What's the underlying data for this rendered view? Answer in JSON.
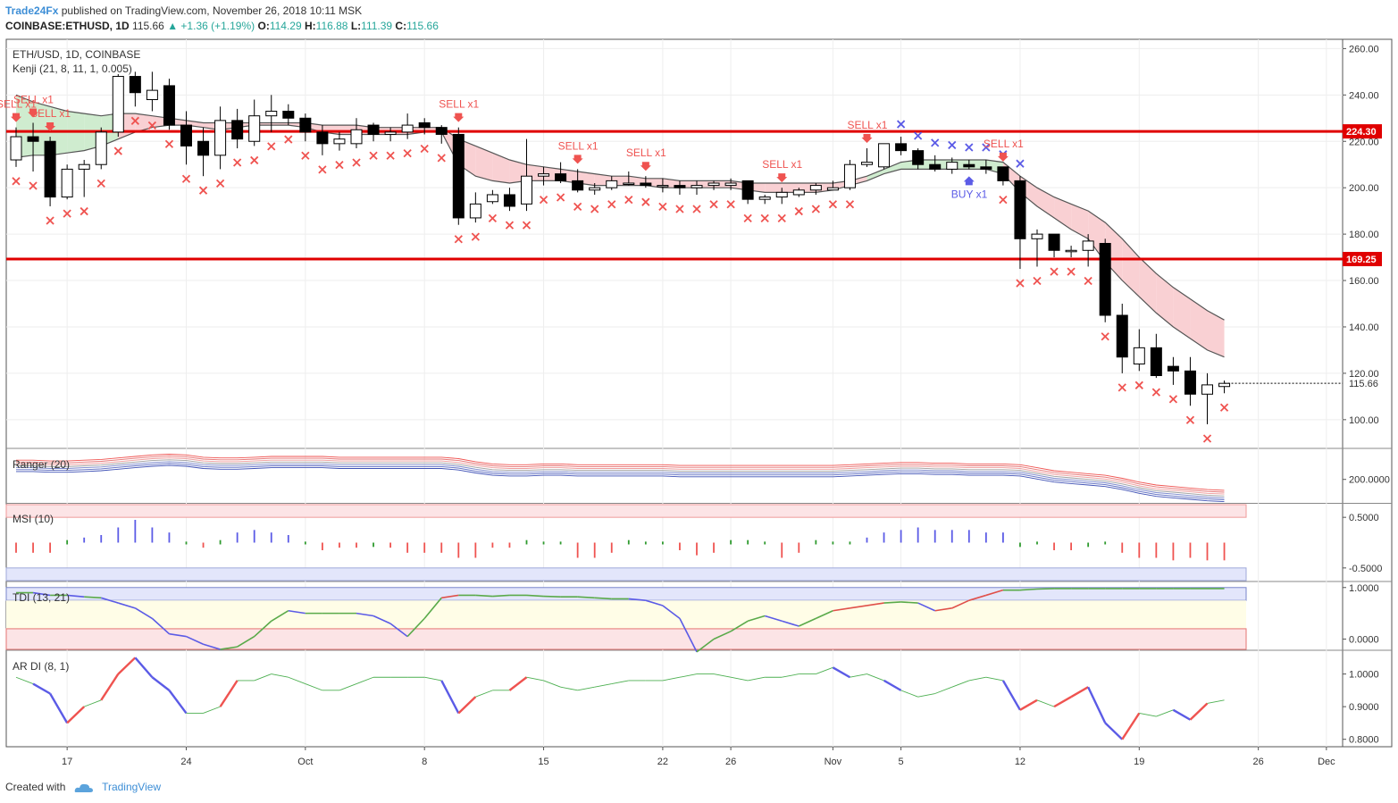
{
  "header": {
    "author": "Trade24Fx",
    "published": "published on TradingView.com, November 26, 2018 10:11 MSK",
    "symbol": "COINBASE:ETHUSD, 1D",
    "last": "115.66",
    "change": "+1.36 (+1.19%)",
    "o_label": "O:",
    "o": "114.29",
    "h_label": "H:",
    "h": "116.88",
    "l_label": "L:",
    "l": "111.39",
    "c_label": "C:",
    "c": "115.66"
  },
  "footer": {
    "created": "Created with",
    "brand": "TradingView"
  },
  "colors": {
    "up": "#ffffff",
    "down": "#000000",
    "sell": "#ef5350",
    "buy": "#5b5be6",
    "resistance": "#e00000",
    "cloud_red": "#f9d0d3",
    "cloud_green": "#cfeccf"
  },
  "chart_data": [
    {
      "type": "candlestick",
      "panel": "price",
      "legend": [
        "ETH/USD, 1D, COINBASE",
        "Kenji (21, 8, 11, 1, 0.005)"
      ],
      "y_range": [
        88,
        264
      ],
      "y_ticks": [
        "260.00",
        "240.00",
        "220.00",
        "200.00",
        "180.00",
        "160.00",
        "140.00",
        "120.00",
        "100.00"
      ],
      "y_tick_values": [
        260,
        240,
        220,
        200,
        180,
        160,
        140,
        120,
        100
      ],
      "x_labels": [
        "17",
        "24",
        "Oct",
        "8",
        "15",
        "22",
        "26",
        "Nov",
        "5",
        "12",
        "19",
        "26",
        "Dec"
      ],
      "x_label_index": [
        3,
        10,
        17,
        24,
        31,
        38,
        42,
        48,
        52,
        59,
        66,
        73,
        77
      ],
      "first_date": "2018-09-14",
      "ohlc": [
        [
          212,
          226,
          209,
          222
        ],
        [
          222,
          228,
          207,
          220
        ],
        [
          220,
          222,
          192,
          196
        ],
        [
          196,
          210,
          195,
          208
        ],
        [
          208,
          212,
          196,
          210
        ],
        [
          210,
          226,
          208,
          224
        ],
        [
          224,
          249,
          222,
          248
        ],
        [
          248,
          250,
          235,
          241
        ],
        [
          238,
          250,
          233,
          242
        ],
        [
          244,
          247,
          225,
          227
        ],
        [
          227,
          233,
          210,
          218
        ],
        [
          220,
          226,
          205,
          214
        ],
        [
          214,
          235,
          208,
          229
        ],
        [
          229,
          234,
          217,
          221
        ],
        [
          220,
          238,
          218,
          231
        ],
        [
          231,
          240,
          224,
          233
        ],
        [
          233,
          236,
          227,
          230
        ],
        [
          230,
          232,
          220,
          224
        ],
        [
          224,
          227,
          214,
          219
        ],
        [
          219,
          224,
          216,
          221
        ],
        [
          219,
          230,
          217,
          225
        ],
        [
          227,
          228,
          220,
          223
        ],
        [
          223,
          226,
          220,
          224
        ],
        [
          224,
          232,
          221,
          227
        ],
        [
          228,
          230,
          223,
          226
        ],
        [
          226,
          227,
          219,
          223
        ],
        [
          223,
          226,
          184,
          187
        ],
        [
          187,
          198,
          185,
          193
        ],
        [
          194,
          199,
          193,
          197
        ],
        [
          197,
          200,
          190,
          192
        ],
        [
          193,
          221,
          190,
          205
        ],
        [
          205,
          209,
          201,
          206
        ],
        [
          206,
          211,
          202,
          203
        ],
        [
          203,
          208,
          198,
          199
        ],
        [
          199,
          202,
          197,
          200
        ],
        [
          200,
          205,
          199,
          203
        ],
        [
          202,
          207,
          201,
          202
        ],
        [
          202,
          205,
          200,
          201
        ],
        [
          201,
          204,
          198,
          201
        ],
        [
          201,
          203,
          197,
          200
        ],
        [
          200,
          203,
          197,
          201
        ],
        [
          201,
          203,
          199,
          202
        ],
        [
          201,
          204,
          199,
          202
        ],
        [
          203,
          203,
          193,
          195
        ],
        [
          195,
          197,
          193,
          196
        ],
        [
          196,
          200,
          193,
          198
        ],
        [
          197,
          200,
          196,
          199
        ],
        [
          199,
          202,
          197,
          201
        ],
        [
          199,
          203,
          199,
          200
        ],
        [
          200,
          212,
          199,
          210
        ],
        [
          210,
          217,
          209,
          211
        ],
        [
          209,
          219,
          208,
          219
        ],
        [
          219,
          222,
          214,
          216
        ],
        [
          216,
          217,
          208,
          210
        ],
        [
          210,
          214,
          207,
          208
        ],
        [
          208,
          213,
          206,
          211
        ],
        [
          210,
          212,
          208,
          209
        ],
        [
          209,
          212,
          206,
          208
        ],
        [
          209,
          209,
          201,
          203
        ],
        [
          203,
          205,
          165,
          178
        ],
        [
          178,
          182,
          166,
          180
        ],
        [
          180,
          180,
          170,
          173
        ],
        [
          173,
          175,
          170,
          173
        ],
        [
          173,
          180,
          166,
          177
        ],
        [
          176,
          178,
          142,
          145
        ],
        [
          145,
          150,
          120,
          127
        ],
        [
          124,
          139,
          121,
          131
        ],
        [
          131,
          137,
          118,
          119
        ],
        [
          123,
          127,
          115,
          121
        ],
        [
          121,
          127,
          106,
          111
        ],
        [
          111,
          120,
          98,
          115
        ],
        [
          114.29,
          116.88,
          111.39,
          115.66
        ]
      ],
      "kenji_upper": [
        240,
        237,
        235,
        233,
        232,
        231,
        232,
        232,
        231,
        230,
        229,
        228,
        228,
        228,
        228,
        228,
        228,
        228,
        227,
        227,
        227,
        226,
        226,
        226,
        226,
        226,
        221,
        218,
        215,
        212,
        210,
        209,
        208,
        207,
        206,
        205,
        205,
        204,
        204,
        203,
        203,
        203,
        203,
        202,
        202,
        202,
        202,
        202,
        202,
        203,
        205,
        208,
        211,
        212,
        212,
        212,
        212,
        212,
        211,
        205,
        200,
        196,
        193,
        190,
        185,
        178,
        170,
        163,
        157,
        152,
        147,
        143
      ],
      "kenji_lower": [
        213,
        214,
        214,
        215,
        216,
        218,
        221,
        224,
        226,
        227,
        227,
        226,
        225,
        226,
        227,
        227,
        227,
        226,
        224,
        223,
        223,
        223,
        223,
        223,
        224,
        224,
        210,
        205,
        203,
        202,
        203,
        203,
        203,
        202,
        201,
        201,
        201,
        201,
        200,
        200,
        200,
        200,
        200,
        199,
        198,
        198,
        198,
        198,
        199,
        201,
        203,
        206,
        208,
        208,
        208,
        208,
        208,
        208,
        206,
        198,
        192,
        187,
        182,
        178,
        168,
        160,
        153,
        146,
        140,
        135,
        130,
        127
      ],
      "levels": [
        {
          "value": 224.3,
          "label": "224.30"
        },
        {
          "value": 169.25,
          "label": "169.25"
        }
      ],
      "last_price": {
        "value": 115.66,
        "label": "115.66"
      },
      "sell_marks": [
        0,
        1,
        2,
        26,
        33,
        37,
        45,
        50,
        58
      ],
      "sell_text": "SELL x1",
      "buy_marks": [
        56
      ],
      "buy_text": "BUY x1",
      "sell_x_index": [
        0,
        1,
        2,
        3,
        4,
        5,
        6,
        7,
        8,
        9,
        10,
        11,
        12,
        13,
        14,
        15,
        16,
        17,
        18,
        19,
        20,
        21,
        22,
        23,
        24,
        25,
        26,
        27,
        28,
        29,
        30,
        31,
        32,
        33,
        34,
        35,
        36,
        37,
        38,
        39,
        40,
        41,
        42,
        43,
        44,
        45,
        46,
        47,
        48,
        49,
        58,
        59,
        60,
        61,
        62,
        63,
        64,
        65,
        66,
        67,
        68,
        69,
        70,
        71
      ],
      "buy_x_index": [
        52,
        53,
        54,
        55,
        56,
        57,
        58,
        59
      ]
    },
    {
      "type": "line",
      "panel": "Ranger",
      "legend": "Ranger (20)",
      "y_range": [
        170,
        240
      ],
      "y_ticks": [
        "200.0000"
      ],
      "y_tick_values": [
        200
      ],
      "base": [
        218,
        218,
        217,
        217,
        218,
        219,
        221,
        223,
        225,
        226,
        225,
        222,
        221,
        221,
        222,
        223,
        223,
        223,
        223,
        222,
        222,
        222,
        222,
        222,
        222,
        222,
        220,
        216,
        213,
        212,
        212,
        213,
        213,
        212,
        212,
        212,
        212,
        212,
        212,
        211,
        211,
        211,
        211,
        211,
        211,
        211,
        211,
        211,
        211,
        212,
        213,
        214,
        215,
        215,
        214,
        214,
        213,
        213,
        213,
        212,
        208,
        204,
        202,
        200,
        198,
        194,
        189,
        185,
        183,
        181,
        179,
        178
      ]
    },
    {
      "type": "bar",
      "panel": "MSI",
      "legend": "MSI (10)",
      "y_range": [
        -0.75,
        0.75
      ],
      "y_ticks": [
        "0.5000",
        "-0.5000"
      ],
      "y_tick_values": [
        0.5,
        -0.5
      ],
      "values": [
        -0.2,
        -0.2,
        -0.2,
        0.05,
        0.1,
        0.15,
        0.3,
        0.45,
        0.3,
        0.2,
        0,
        -0.1,
        0.05,
        0.2,
        0.25,
        0.2,
        0.15,
        0,
        -0.15,
        -0.1,
        -0.1,
        -0.05,
        -0.1,
        -0.2,
        -0.2,
        -0.2,
        -0.3,
        -0.3,
        -0.1,
        -0.1,
        0.05,
        0,
        0,
        -0.3,
        -0.3,
        -0.2,
        0.05,
        0,
        0,
        -0.15,
        -0.25,
        -0.2,
        0.05,
        0.05,
        0,
        -0.3,
        -0.2,
        0.05,
        0,
        0,
        0.1,
        0.2,
        0.25,
        0.3,
        0.25,
        0.25,
        0.25,
        0.2,
        0.2,
        -0.05,
        0,
        -0.15,
        -0.15,
        -0.05,
        0,
        -0.2,
        -0.3,
        -0.3,
        -0.35,
        -0.3,
        -0.35,
        -0.35
      ],
      "pos_color": "#5b5be6",
      "neg_color": "#ef5350",
      "small_color": "#2e9a2e"
    },
    {
      "type": "line",
      "panel": "TDI",
      "legend": "TDI (13, 21)",
      "y_range": [
        -0.2,
        1.1
      ],
      "y_ticks": [
        "1.0000",
        "0.0000"
      ],
      "y_tick_values": [
        1,
        0
      ],
      "values": [
        0.9,
        0.9,
        0.85,
        0.85,
        0.82,
        0.8,
        0.7,
        0.6,
        0.4,
        0.1,
        0.05,
        -0.1,
        -0.2,
        -0.15,
        0.05,
        0.35,
        0.55,
        0.5,
        0.5,
        0.5,
        0.5,
        0.45,
        0.3,
        0.05,
        0.4,
        0.8,
        0.85,
        0.85,
        0.83,
        0.85,
        0.85,
        0.83,
        0.82,
        0.82,
        0.8,
        0.78,
        0.78,
        0.75,
        0.65,
        0.4,
        -0.25,
        0.0,
        0.15,
        0.35,
        0.45,
        0.35,
        0.25,
        0.4,
        0.55,
        0.6,
        0.65,
        0.7,
        0.72,
        0.7,
        0.55,
        0.6,
        0.75,
        0.85,
        0.95,
        0.95,
        0.97,
        0.98,
        0.98,
        0.98,
        0.98,
        0.98,
        0.98,
        0.98,
        0.98,
        0.98,
        0.98,
        0.98
      ]
    },
    {
      "type": "line",
      "panel": "AR DI",
      "legend": "AR DI (8, 1)",
      "y_range": [
        0.78,
        1.07
      ],
      "y_ticks": [
        "1.0000",
        "0.9000",
        "0.8000"
      ],
      "y_tick_values": [
        1.0,
        0.9,
        0.8
      ],
      "values": [
        0.99,
        0.97,
        0.94,
        0.85,
        0.9,
        0.92,
        1.0,
        1.05,
        0.99,
        0.95,
        0.88,
        0.88,
        0.9,
        0.98,
        0.98,
        1.0,
        0.99,
        0.97,
        0.95,
        0.95,
        0.97,
        0.99,
        0.99,
        0.99,
        0.99,
        0.98,
        0.88,
        0.93,
        0.95,
        0.95,
        0.99,
        0.98,
        0.96,
        0.95,
        0.96,
        0.97,
        0.98,
        0.98,
        0.98,
        0.99,
        1.0,
        1.0,
        0.99,
        0.98,
        0.99,
        0.99,
        1.0,
        1.0,
        1.02,
        0.99,
        1.0,
        0.98,
        0.95,
        0.93,
        0.94,
        0.96,
        0.98,
        0.99,
        0.98,
        0.89,
        0.92,
        0.9,
        0.93,
        0.96,
        0.85,
        0.8,
        0.88,
        0.87,
        0.89,
        0.86,
        0.91,
        0.92
      ]
    }
  ]
}
